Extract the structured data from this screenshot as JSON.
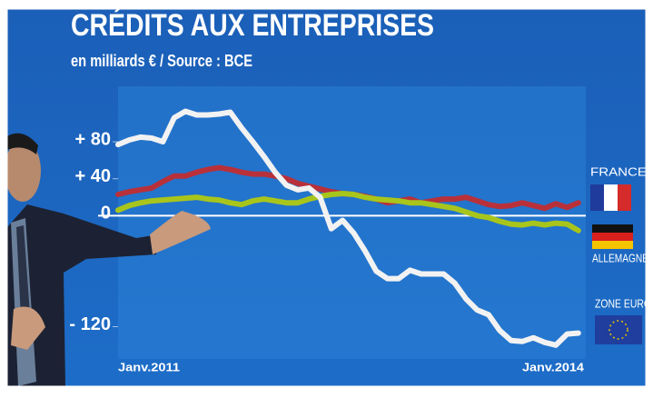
{
  "chart_data": {
    "type": "line",
    "title": "CRÉDITS AUX ENTREPRISES",
    "subtitle": "en milliards € / Source : BCE",
    "categories": [
      "Janv.2011",
      null,
      null,
      null,
      null,
      null,
      null,
      null,
      null,
      null,
      null,
      null,
      null,
      null,
      null,
      null,
      null,
      null,
      null,
      null,
      null,
      null,
      null,
      null,
      null,
      null,
      null,
      null,
      null,
      null,
      null,
      null,
      null,
      null,
      null,
      null,
      "Janv.2014",
      null,
      null,
      null,
      null,
      null
    ],
    "series": [
      {
        "name": "FRANCE",
        "color": "#b8313a",
        "values": [
          23,
          26,
          28,
          30,
          37,
          43,
          43,
          47,
          50,
          52,
          50,
          47,
          45,
          45,
          43,
          40,
          35,
          32,
          29,
          26,
          24,
          23,
          21,
          18,
          14,
          16,
          18,
          14,
          16,
          18,
          18,
          20,
          16,
          12,
          10,
          11,
          14,
          11,
          8,
          13,
          9,
          14
        ]
      },
      {
        "name": "ALLEMAGNE",
        "color": "#a8c51c",
        "values": [
          6,
          11,
          14,
          16,
          17,
          18,
          19,
          20,
          18,
          17,
          14,
          12,
          16,
          18,
          16,
          14,
          14,
          18,
          21,
          23,
          24,
          23,
          20,
          18,
          17,
          16,
          14,
          14,
          12,
          10,
          8,
          4,
          0,
          -2,
          -6,
          -9,
          -10,
          -8,
          -10,
          -8,
          -9,
          -16
        ]
      },
      {
        "name": "ZONE EURO",
        "color": "#f2f2f2",
        "values": [
          77,
          82,
          85,
          84,
          80,
          106,
          113,
          109,
          109,
          110,
          112,
          95,
          80,
          64,
          47,
          33,
          28,
          30,
          20,
          -14,
          -5,
          -19,
          -38,
          -60,
          -68,
          -68,
          -59,
          -63,
          -63,
          -63,
          -73,
          -90,
          -102,
          -107,
          -124,
          -135,
          -136,
          -132,
          -137,
          -140,
          -128,
          -127
        ]
      }
    ],
    "ylim": [
      -150,
      140
    ],
    "yticks": [
      {
        "value": 80,
        "label": "+ 80"
      },
      {
        "value": 40,
        "label": "+ 40"
      },
      0,
      {
        "value": -120,
        "label": "- 120"
      }
    ]
  }
}
